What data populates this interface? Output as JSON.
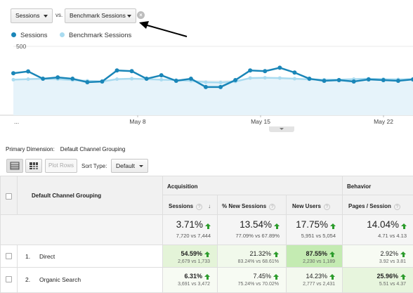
{
  "controls": {
    "metric_label": "Sessions",
    "vs_label": "vs.",
    "benchmark_label": "Benchmark Sessions",
    "remove_symbol": "×"
  },
  "legend": {
    "series_1": "Sessions",
    "series_2": "Benchmark Sessions",
    "color_1": "#1a86b8",
    "color_2": "#a9dbf0"
  },
  "chart_data": {
    "type": "line",
    "y_ticks": [
      "500",
      "250"
    ],
    "x_ticks": [
      "...",
      "May 8",
      "May 15",
      "May 22"
    ],
    "ylim": [
      0,
      500
    ],
    "x_days": 23,
    "series": [
      {
        "name": "Sessions",
        "values": [
          305,
          318,
          265,
          275,
          265,
          240,
          245,
          325,
          320,
          265,
          290,
          250,
          265,
          205,
          205,
          255,
          325,
          320,
          345,
          310,
          265,
          250,
          255,
          245,
          260,
          255,
          250,
          260
        ]
      },
      {
        "name": "Benchmark Sessions",
        "values": [
          258,
          262,
          265,
          262,
          255,
          250,
          245,
          262,
          265,
          262,
          258,
          255,
          250,
          240,
          238,
          245,
          270,
          272,
          270,
          265,
          260,
          258,
          258,
          262,
          265,
          262,
          260,
          262
        ]
      }
    ],
    "grid": true
  },
  "primary_dimension": {
    "label": "Primary Dimension:",
    "value": "Default Channel Grouping"
  },
  "toolbar": {
    "plot_rows": "Plot Rows",
    "sort_type_label": "Sort Type:",
    "sort_value": "Default"
  },
  "table": {
    "dimension_header": "Default Channel Grouping",
    "group_acquisition": "Acquisition",
    "group_behavior": "Behavior",
    "columns": [
      "Sessions",
      "% New Sessions",
      "New Users",
      "Pages / Session"
    ],
    "sort_arrow": "↓",
    "totals": [
      {
        "value": "3.71%",
        "sub": "7,720 vs 7,444"
      },
      {
        "value": "13.54%",
        "sub": "77.09% vs 67.89%"
      },
      {
        "value": "17.75%",
        "sub": "5,951 vs 5,054"
      },
      {
        "value": "14.04%",
        "sub": "4.71 vs 4.13"
      }
    ],
    "rows": [
      {
        "num": "1.",
        "name": "Direct",
        "cells": [
          {
            "value": "54.59%",
            "sub": "2,679 vs 1,733",
            "bg": "#e4f4d8"
          },
          {
            "value": "21.32%",
            "sub": "83.24% vs 68.61%",
            "bg": "#f1f9eb"
          },
          {
            "value": "87.55%",
            "sub": "2,230 vs 1,189",
            "bg": "#c4ebb2"
          },
          {
            "value": "2.92%",
            "sub": "3.92 vs 3.81",
            "bg": "#f7fbf3"
          }
        ]
      },
      {
        "num": "2.",
        "name": "Organic Search",
        "cells": [
          {
            "value": "6.31%",
            "sub": "3,691 vs 3,472",
            "bg": "#f7fbf3"
          },
          {
            "value": "7.45%",
            "sub": "75.24% vs 70.02%",
            "bg": "#f7fbf3"
          },
          {
            "value": "14.23%",
            "sub": "2,777 vs 2,431",
            "bg": "#f3f9ee"
          },
          {
            "value": "25.96%",
            "sub": "5.51 vs 4.37",
            "bg": "#e7f5dd"
          }
        ]
      }
    ]
  }
}
